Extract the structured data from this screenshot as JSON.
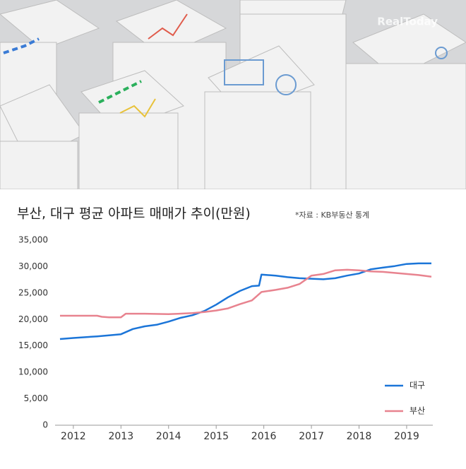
{
  "chart_data": {
    "type": "line",
    "title": "부산, 대구 평균 아파트 매매가 추이(만원)",
    "source": "*자료 : KB부동산 통계",
    "watermark": "RealToday",
    "xlim": [
      2011.72,
      2019.52
    ],
    "xticks": [
      2012,
      2013,
      2014,
      2015,
      2016,
      2017,
      2018,
      2019
    ],
    "ylim": [
      0,
      35000
    ],
    "yticks": [
      0,
      {
        "value": 5000,
        "label": "5,000"
      },
      {
        "value": 10000,
        "label": "10,000"
      },
      {
        "value": 15000,
        "label": "15,000"
      },
      {
        "value": 20000,
        "label": "20,000"
      },
      {
        "value": 25000,
        "label": "25,000"
      },
      {
        "value": 30000,
        "label": "30,000"
      },
      {
        "value": 35000,
        "label": "35,000"
      }
    ],
    "legend": "lower right",
    "series": [
      {
        "name": "대구",
        "color": "#1b75d8",
        "x": [
          2011.72,
          2012.0,
          2012.5,
          2012.75,
          2013.0,
          2013.25,
          2013.5,
          2013.75,
          2014.0,
          2014.25,
          2014.5,
          2014.75,
          2015.0,
          2015.25,
          2015.5,
          2015.75,
          2015.9,
          2015.95,
          2016.25,
          2016.5,
          2016.75,
          2017.0,
          2017.25,
          2017.5,
          2017.75,
          2018.0,
          2018.25,
          2018.5,
          2018.75,
          2019.0,
          2019.25,
          2019.52
        ],
        "values": [
          16300,
          16500,
          16800,
          17000,
          17200,
          18200,
          18700,
          19000,
          19600,
          20300,
          20800,
          21600,
          22800,
          24200,
          25400,
          26300,
          26400,
          28500,
          28300,
          28000,
          27800,
          27700,
          27600,
          27800,
          28300,
          28700,
          29500,
          29800,
          30100,
          30500,
          30600,
          30600
        ]
      },
      {
        "name": "부산",
        "color": "#e8838f",
        "x": [
          2011.72,
          2012.5,
          2012.6,
          2012.75,
          2013.0,
          2013.1,
          2013.5,
          2014.0,
          2014.5,
          2014.75,
          2015.0,
          2015.25,
          2015.5,
          2015.75,
          2015.95,
          2016.25,
          2016.5,
          2016.75,
          2017.0,
          2017.25,
          2017.5,
          2017.75,
          2018.0,
          2018.25,
          2018.5,
          2018.75,
          2019.0,
          2019.25,
          2019.52
        ],
        "values": [
          20700,
          20700,
          20500,
          20400,
          20400,
          21100,
          21100,
          21000,
          21200,
          21400,
          21700,
          22100,
          22900,
          23600,
          25200,
          25600,
          26000,
          26700,
          28300,
          28600,
          29300,
          29400,
          29300,
          29100,
          29000,
          28800,
          28600,
          28400,
          28100
        ]
      }
    ]
  }
}
